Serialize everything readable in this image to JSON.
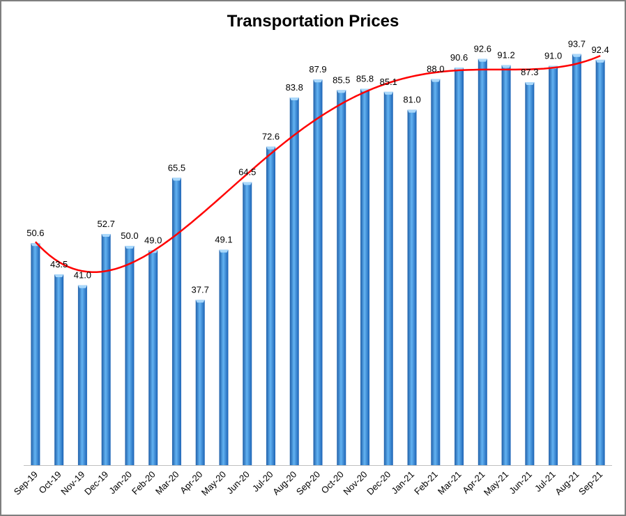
{
  "chart_data": {
    "type": "bar",
    "title": "Transportation Prices",
    "xlabel": "",
    "ylabel": "",
    "ylim": [
      0,
      100
    ],
    "grid": false,
    "legend": "none",
    "categories": [
      "Sep-19",
      "Oct-19",
      "Nov-19",
      "Dec-19",
      "Jan-20",
      "Feb-20",
      "Mar-20",
      "Apr-20",
      "May-20",
      "Jun-20",
      "Jul-20",
      "Aug-20",
      "Sep-20",
      "Oct-20",
      "Nov-20",
      "Dec-20",
      "Jan-21",
      "Feb-21",
      "Mar-21",
      "Apr-21",
      "May-21",
      "Jun-21",
      "Jul-21",
      "Aug-21",
      "Sep-21"
    ],
    "series": [
      {
        "values": [
          50.6,
          43.5,
          41.0,
          52.7,
          50.0,
          49.0,
          65.5,
          37.7,
          49.1,
          64.5,
          72.6,
          83.8,
          87.9,
          85.5,
          85.8,
          85.1,
          81.0,
          88.0,
          90.6,
          92.6,
          91.2,
          87.3,
          91.0,
          93.7,
          92.4
        ],
        "labels": [
          "50.6",
          "43.5",
          "41.0",
          "52.7",
          "50.0",
          "49.0",
          "65.5",
          "37.7",
          "49.1",
          "64.5",
          "72.6",
          "83.8",
          "87.9",
          "85.5",
          "85.8",
          "85.1",
          "81.0",
          "88.0",
          "90.6",
          "92.6",
          "91.2",
          "87.3",
          "91.0",
          "93.7",
          "92.4"
        ],
        "color": "#3b8fd6"
      }
    ],
    "trendline": {
      "type": "polynomial",
      "color": "#ff0000"
    }
  }
}
